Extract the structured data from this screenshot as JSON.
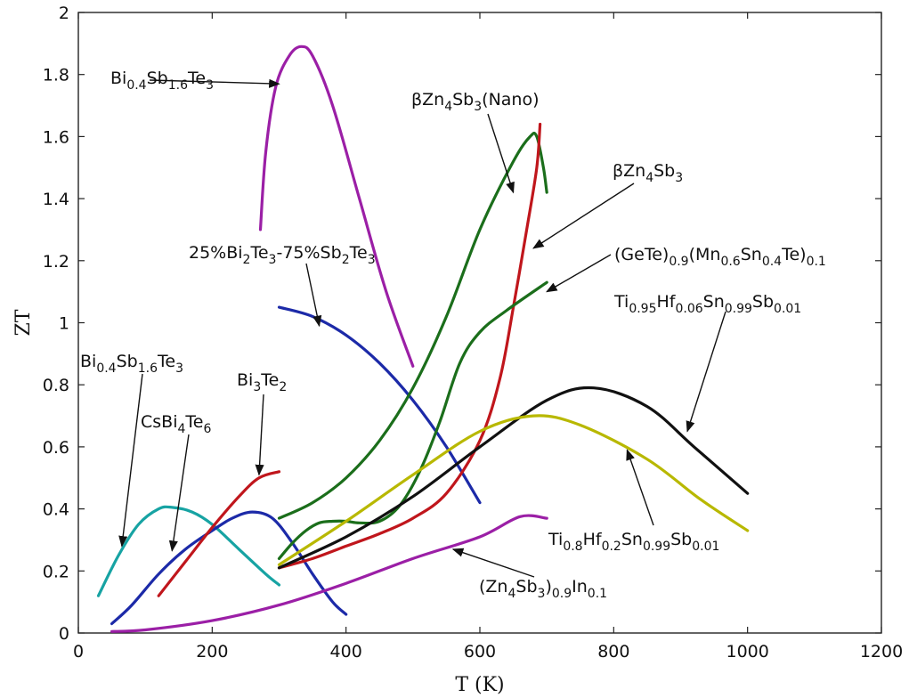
{
  "chart_data": {
    "type": "line",
    "xlabel": "T (K)",
    "ylabel": "ZT",
    "xlim": [
      0,
      1200
    ],
    "ylim": [
      0,
      2
    ],
    "xticks": [
      "0",
      "200",
      "400",
      "600",
      "800",
      "1000",
      "1200"
    ],
    "yticks": [
      "0",
      "0.2",
      "0.4",
      "0.6",
      "0.8",
      "1",
      "1.2",
      "1.4",
      "1.6",
      "1.8",
      "2"
    ],
    "grid": false,
    "series": [
      {
        "color": "#9b1fa6",
        "points": [
          [
            272,
            1.3
          ],
          [
            280,
            1.55
          ],
          [
            295,
            1.76
          ],
          [
            315,
            1.86
          ],
          [
            333,
            1.89
          ],
          [
            350,
            1.86
          ],
          [
            380,
            1.7
          ],
          [
            420,
            1.4
          ],
          [
            460,
            1.1
          ],
          [
            500,
            0.86
          ]
        ]
      },
      {
        "color": "#1c2aa8",
        "points": [
          [
            300,
            1.05
          ],
          [
            350,
            1.02
          ],
          [
            400,
            0.96
          ],
          [
            450,
            0.87
          ],
          [
            500,
            0.75
          ],
          [
            550,
            0.6
          ],
          [
            600,
            0.42
          ]
        ]
      },
      {
        "color": "#17a3a3",
        "points": [
          [
            30,
            0.12
          ],
          [
            60,
            0.25
          ],
          [
            90,
            0.35
          ],
          [
            120,
            0.4
          ],
          [
            140,
            0.405
          ],
          [
            170,
            0.39
          ],
          [
            200,
            0.35
          ],
          [
            240,
            0.27
          ],
          [
            280,
            0.19
          ],
          [
            300,
            0.155
          ]
        ]
      },
      {
        "color": "#1c2aa8",
        "points": [
          [
            50,
            0.03
          ],
          [
            80,
            0.09
          ],
          [
            120,
            0.19
          ],
          [
            160,
            0.27
          ],
          [
            200,
            0.33
          ],
          [
            230,
            0.37
          ],
          [
            260,
            0.39
          ],
          [
            290,
            0.37
          ],
          [
            320,
            0.29
          ],
          [
            350,
            0.19
          ],
          [
            380,
            0.1
          ],
          [
            400,
            0.06
          ]
        ]
      },
      {
        "color": "#c0161c",
        "points": [
          [
            120,
            0.12
          ],
          [
            160,
            0.23
          ],
          [
            200,
            0.34
          ],
          [
            240,
            0.44
          ],
          [
            270,
            0.5
          ],
          [
            300,
            0.52
          ]
        ]
      },
      {
        "color": "#9b1fa6",
        "points": [
          [
            50,
            0.005
          ],
          [
            100,
            0.01
          ],
          [
            200,
            0.04
          ],
          [
            300,
            0.09
          ],
          [
            400,
            0.16
          ],
          [
            500,
            0.24
          ],
          [
            600,
            0.31
          ],
          [
            660,
            0.375
          ],
          [
            700,
            0.37
          ]
        ]
      },
      {
        "color": "#1b6e1b",
        "points": [
          [
            300,
            0.37
          ],
          [
            350,
            0.42
          ],
          [
            400,
            0.5
          ],
          [
            450,
            0.62
          ],
          [
            500,
            0.79
          ],
          [
            550,
            1.02
          ],
          [
            600,
            1.3
          ],
          [
            650,
            1.52
          ],
          [
            675,
            1.6
          ],
          [
            685,
            1.6
          ],
          [
            695,
            1.5
          ],
          [
            700,
            1.42
          ]
        ]
      },
      {
        "color": "#c0161c",
        "points": [
          [
            300,
            0.21
          ],
          [
            350,
            0.24
          ],
          [
            400,
            0.28
          ],
          [
            450,
            0.32
          ],
          [
            500,
            0.37
          ],
          [
            550,
            0.45
          ],
          [
            600,
            0.62
          ],
          [
            630,
            0.82
          ],
          [
            650,
            1.05
          ],
          [
            670,
            1.3
          ],
          [
            685,
            1.5
          ],
          [
            690,
            1.64
          ]
        ]
      },
      {
        "color": "#1b6e1b",
        "points": [
          [
            300,
            0.24
          ],
          [
            320,
            0.29
          ],
          [
            340,
            0.33
          ],
          [
            360,
            0.355
          ],
          [
            380,
            0.36
          ],
          [
            400,
            0.36
          ],
          [
            420,
            0.355
          ],
          [
            450,
            0.36
          ],
          [
            480,
            0.41
          ],
          [
            510,
            0.52
          ],
          [
            540,
            0.68
          ],
          [
            570,
            0.87
          ],
          [
            600,
            0.97
          ],
          [
            640,
            1.04
          ],
          [
            700,
            1.13
          ]
        ]
      },
      {
        "color": "#111111",
        "points": [
          [
            300,
            0.21
          ],
          [
            400,
            0.31
          ],
          [
            500,
            0.44
          ],
          [
            600,
            0.6
          ],
          [
            700,
            0.75
          ],
          [
            770,
            0.79
          ],
          [
            850,
            0.73
          ],
          [
            920,
            0.6
          ],
          [
            1000,
            0.45
          ]
        ]
      },
      {
        "color": "#b8b800",
        "points": [
          [
            300,
            0.22
          ],
          [
            400,
            0.36
          ],
          [
            500,
            0.51
          ],
          [
            600,
            0.65
          ],
          [
            680,
            0.7
          ],
          [
            750,
            0.67
          ],
          [
            850,
            0.56
          ],
          [
            930,
            0.43
          ],
          [
            1000,
            0.33
          ]
        ]
      }
    ],
    "annotations": [
      {
        "parts": [
          [
            "Bi",
            "n"
          ],
          [
            "0.4",
            "sub"
          ],
          [
            "Sb",
            "n"
          ],
          [
            "1.6",
            "sub"
          ],
          [
            "Te",
            "n"
          ],
          [
            "3",
            "sub"
          ]
        ],
        "arrow_to": [
          300,
          1.77
        ]
      },
      {
        "parts": [
          [
            "βZn",
            "n"
          ],
          [
            "4",
            "sub"
          ],
          [
            "Sb",
            "n"
          ],
          [
            "3",
            "sub"
          ],
          [
            "(Nano)",
            "n"
          ]
        ],
        "arrow_to": [
          650,
          1.42
        ]
      },
      {
        "parts": [
          [
            "βZn",
            "n"
          ],
          [
            "4",
            "sub"
          ],
          [
            "Sb",
            "n"
          ],
          [
            "3",
            "sub"
          ]
        ],
        "arrow_to": [
          680,
          1.24
        ]
      },
      {
        "parts": [
          [
            "25%Bi",
            "n"
          ],
          [
            "2",
            "sub"
          ],
          [
            "Te",
            "n"
          ],
          [
            "3",
            "sub"
          ],
          [
            "-75%Sb",
            "n"
          ],
          [
            "2",
            "sub"
          ],
          [
            "Te",
            "n"
          ],
          [
            "3",
            "sub"
          ]
        ],
        "arrow_to": [
          360,
          0.99
        ]
      },
      {
        "parts": [
          [
            "(GeTe)",
            "n"
          ],
          [
            "0.9",
            "sub"
          ],
          [
            "(Mn",
            "n"
          ],
          [
            "0.6",
            "sub"
          ],
          [
            "Sn",
            "n"
          ],
          [
            "0.4",
            "sub"
          ],
          [
            "Te)",
            "n"
          ],
          [
            "0.1",
            "sub"
          ]
        ],
        "arrow_to": [
          700,
          1.1
        ]
      },
      {
        "parts": [
          [
            "Ti",
            "n"
          ],
          [
            "0.95",
            "sub"
          ],
          [
            "Hf",
            "n"
          ],
          [
            "0.06",
            "sub"
          ],
          [
            "Sn",
            "n"
          ],
          [
            "0.99",
            "sub"
          ],
          [
            "Sb",
            "n"
          ],
          [
            "0.01",
            "sub"
          ]
        ],
        "arrow_to": [
          910,
          0.65
        ]
      },
      {
        "parts": [
          [
            "Bi",
            "n"
          ],
          [
            "0.4",
            "sub"
          ],
          [
            "Sb",
            "n"
          ],
          [
            "1.6",
            "sub"
          ],
          [
            "Te",
            "n"
          ],
          [
            "3",
            "sub"
          ]
        ],
        "arrow_to": [
          65,
          0.28
        ]
      },
      {
        "parts": [
          [
            "Bi",
            "n"
          ],
          [
            "3",
            "sub"
          ],
          [
            "Te",
            "n"
          ],
          [
            "2",
            "sub"
          ]
        ],
        "arrow_to": [
          270,
          0.51
        ]
      },
      {
        "parts": [
          [
            "CsBi",
            "n"
          ],
          [
            "4",
            "sub"
          ],
          [
            "Te",
            "n"
          ],
          [
            "6",
            "sub"
          ]
        ],
        "arrow_to": [
          140,
          0.265
        ]
      },
      {
        "parts": [
          [
            "Ti",
            "n"
          ],
          [
            "0.8",
            "sub"
          ],
          [
            "Hf",
            "n"
          ],
          [
            "0.2",
            "sub"
          ],
          [
            "Sn",
            "n"
          ],
          [
            "0.99",
            "sub"
          ],
          [
            "Sb",
            "n"
          ],
          [
            "0.01",
            "sub"
          ]
        ],
        "arrow_to": [
          820,
          0.59
        ]
      },
      {
        "parts": [
          [
            "(Zn",
            "n"
          ],
          [
            "4",
            "sub"
          ],
          [
            "Sb",
            "n"
          ],
          [
            "3",
            "sub"
          ],
          [
            ")",
            "n"
          ],
          [
            "0.9",
            "sub"
          ],
          [
            "In",
            "n"
          ],
          [
            "0.1",
            "sub"
          ]
        ],
        "arrow_to": [
          560,
          0.27
        ]
      }
    ]
  }
}
